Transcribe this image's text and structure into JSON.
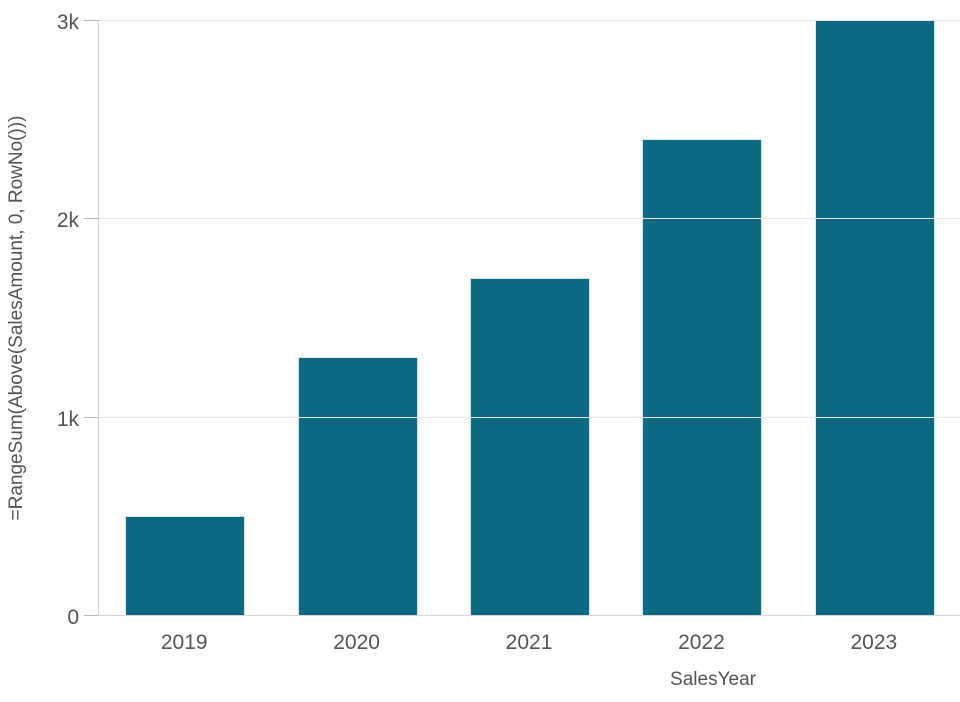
{
  "chart_data": {
    "type": "bar",
    "title": "",
    "xlabel": "SalesYear",
    "ylabel": "=RangeSum(Above(SalesAmount, 0, RowNo()))",
    "categories": [
      "2019",
      "2020",
      "2021",
      "2022",
      "2023"
    ],
    "values": [
      500,
      1300,
      1700,
      2400,
      3000
    ],
    "ylim": [
      0,
      3000
    ],
    "yticks": [
      {
        "value": 0,
        "label": "0"
      },
      {
        "value": 1000,
        "label": "1k"
      },
      {
        "value": 2000,
        "label": "2k"
      },
      {
        "value": 3000,
        "label": "3k"
      }
    ],
    "grid": true,
    "legend": false,
    "colors": {
      "bar": "#0A6A84",
      "bar_border": "#D6E9EF",
      "gridline": "#E8E8E8",
      "axis_line": "#D6D6D6",
      "tick_mark": "#B8B8B8",
      "text": "#545454",
      "background": "#FFFFFF"
    }
  }
}
